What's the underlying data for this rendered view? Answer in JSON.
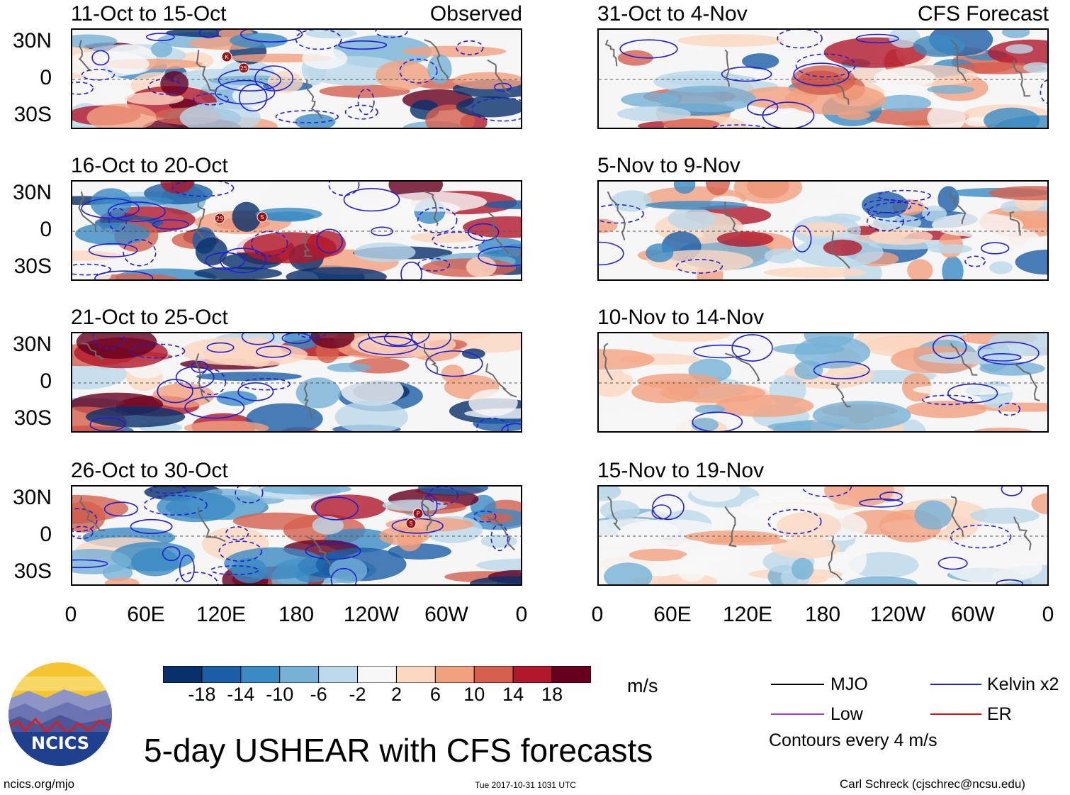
{
  "figure": {
    "main_title": "5-day USHEAR with CFS forecasts",
    "timestamp": "Tue 2017-10-31 1031 UTC",
    "site": "ncics.org/mjo",
    "author": "Carl Schreck (cjschrec@ncsu.edu)",
    "logo_text": "NCICS"
  },
  "columns": {
    "left_tag": "Observed",
    "right_tag": "CFS Forecast"
  },
  "panels": {
    "left": [
      "11-Oct to 15-Oct",
      "16-Oct to 20-Oct",
      "21-Oct to 25-Oct",
      "26-Oct to 30-Oct"
    ],
    "right": [
      "31-Oct to 4-Nov",
      "5-Nov to 9-Nov",
      "10-Nov to 14-Nov",
      "15-Nov to 19-Nov"
    ]
  },
  "axes": {
    "lat_labels": [
      "30N",
      "0",
      "30S"
    ],
    "lon_labels": [
      "0",
      "60E",
      "120E",
      "180",
      "120W",
      "60W",
      "0"
    ]
  },
  "colorbar": {
    "unit": "m/s",
    "ticks": [
      "-18",
      "-14",
      "-10",
      "-6",
      "-2",
      "2",
      "6",
      "10",
      "14",
      "18"
    ],
    "colors": [
      "#08306b",
      "#1c5ea6",
      "#3a8bc4",
      "#76b2d6",
      "#bcd8ea",
      "#f7f7f7",
      "#fcd7c2",
      "#f2a17f",
      "#d6604d",
      "#b2182b",
      "#67001f"
    ]
  },
  "legend": {
    "items": [
      {
        "label": "MJO",
        "color": "#000000"
      },
      {
        "label": "Kelvin x2",
        "color": "#1f1fd6"
      },
      {
        "label": "Low",
        "color": "#a040d0"
      },
      {
        "label": "ER",
        "color": "#e01010"
      }
    ],
    "contour_note": "Contours every 4 m/s"
  },
  "storm_markers": [
    {
      "panel": "left.0",
      "labels": [
        "K",
        "25"
      ]
    },
    {
      "panel": "left.1",
      "labels": [
        "29",
        "S"
      ]
    },
    {
      "panel": "left.3",
      "labels": [
        "P",
        "S"
      ]
    }
  ]
}
